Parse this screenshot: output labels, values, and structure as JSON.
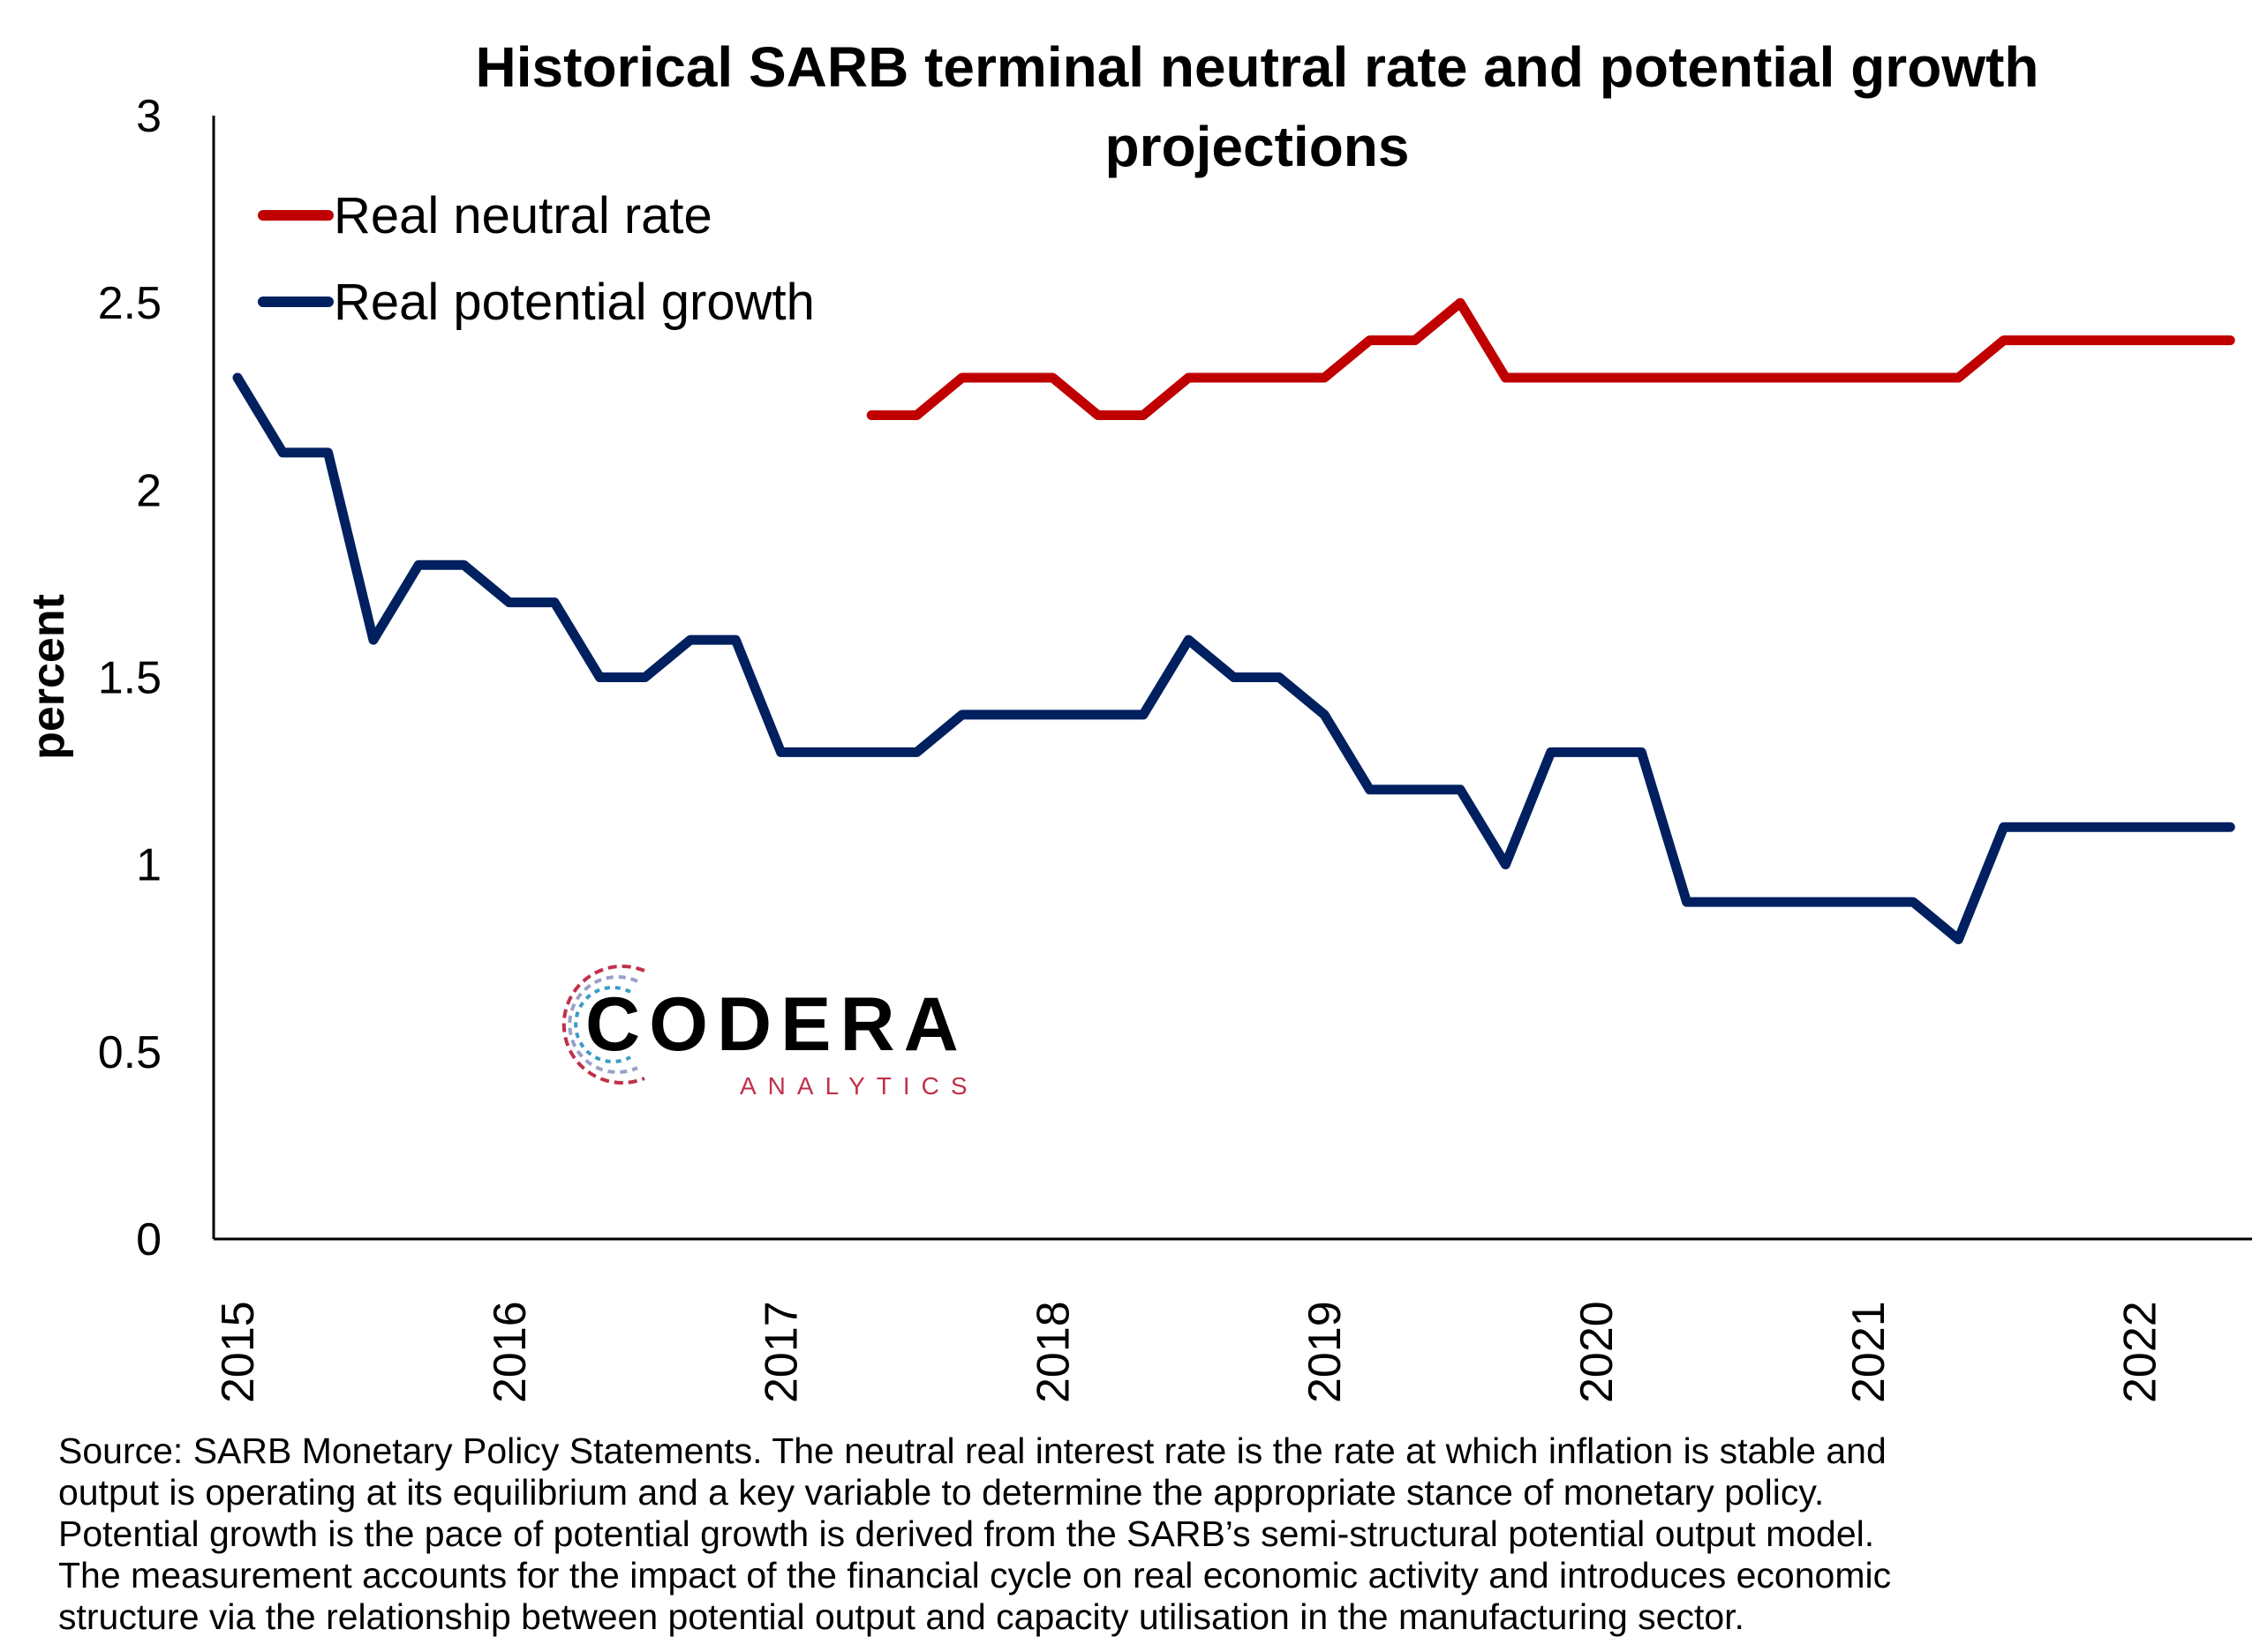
{
  "chart_data": {
    "type": "line",
    "title": "Historical SARB terminal neutral rate and potential growth projections",
    "title_lines": [
      "Historical SARB terminal neutral rate and potential growth",
      "projections"
    ],
    "xlabel": "",
    "ylabel": "percent",
    "ylim": [
      0,
      3
    ],
    "yticks": [
      "0",
      "0.5",
      "1",
      "1.5",
      "2",
      "2.5",
      "3"
    ],
    "xtick_labels": [
      "2015",
      "2016",
      "2017",
      "2018",
      "2019",
      "2020",
      "2021",
      "2022"
    ],
    "x": [
      "2015-01",
      "2015-03",
      "2015-05",
      "2015-07",
      "2015-09",
      "2015-11",
      "2016-01",
      "2016-03",
      "2016-05",
      "2016-07",
      "2016-09",
      "2016-11",
      "2017-01",
      "2017-03",
      "2017-05",
      "2017-07",
      "2017-09",
      "2017-11",
      "2018-01",
      "2018-03",
      "2018-05",
      "2018-07",
      "2018-09",
      "2018-11",
      "2019-01",
      "2019-03",
      "2019-05",
      "2019-07",
      "2019-09",
      "2019-11",
      "2020-01",
      "2020-03",
      "2020-05",
      "2020-07",
      "2020-09",
      "2020-11",
      "2021-01",
      "2021-03",
      "2021-05",
      "2021-07",
      "2021-09",
      "2021-11",
      "2022-01",
      "2022-03",
      "2022-05"
    ],
    "grid": false,
    "legend_position": "top-left",
    "series": [
      {
        "name": "Real neutral rate",
        "color": "#C00000",
        "values": [
          null,
          null,
          null,
          null,
          null,
          null,
          null,
          null,
          null,
          null,
          null,
          null,
          null,
          null,
          2.2,
          2.2,
          2.3,
          2.3,
          2.3,
          2.2,
          2.2,
          2.3,
          2.3,
          2.3,
          2.3,
          2.4,
          2.4,
          2.5,
          2.3,
          2.3,
          2.3,
          2.3,
          2.3,
          2.3,
          2.3,
          2.3,
          2.3,
          2.3,
          2.3,
          2.4,
          2.4,
          2.4,
          2.4,
          2.4,
          2.4
        ]
      },
      {
        "name": "Real potential growth",
        "color": "#002060",
        "values": [
          2.3,
          2.1,
          2.1,
          1.6,
          1.8,
          1.8,
          1.7,
          1.7,
          1.5,
          1.5,
          1.6,
          1.6,
          1.3,
          1.3,
          1.3,
          1.3,
          1.4,
          1.4,
          1.4,
          1.4,
          1.4,
          1.6,
          1.5,
          1.5,
          1.4,
          1.2,
          1.2,
          1.2,
          1.0,
          1.3,
          1.3,
          1.3,
          0.9,
          0.9,
          0.9,
          0.9,
          0.9,
          0.9,
          0.8,
          1.1,
          1.1,
          1.1,
          1.1,
          1.1,
          1.1
        ]
      }
    ]
  },
  "logo": {
    "name": "CODERA",
    "sub": "ANALYTICS"
  },
  "source_lines": [
    "Source: SARB Monetary Policy Statements. The neutral real interest rate is the rate at which inflation is stable and",
    "output is operating at its equilibrium and a key variable to determine the appropriate stance of monetary policy.",
    "Potential growth is the pace of potential growth is derived from the SARB’s semi-structural potential output model.",
    "The measurement accounts for the impact of the financial cycle on real economic activity and introduces economic",
    "structure via the relationship between potential output and capacity utilisation in the manufacturing sector."
  ]
}
